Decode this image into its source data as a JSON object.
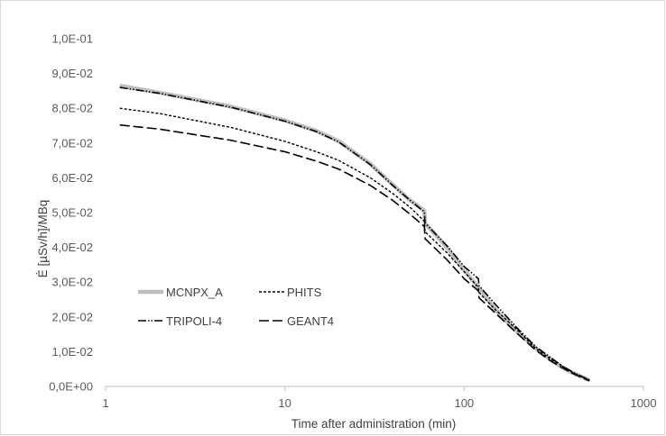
{
  "chart_data": {
    "type": "line",
    "title": "",
    "xlabel": "Time after administration (min)",
    "ylabel": "Ė [µSv/h]/MBq",
    "x_scale": "log",
    "xlim": [
      1,
      1000
    ],
    "ylim": [
      0,
      0.1
    ],
    "grid": false,
    "legend_position": "bottom-left",
    "x_tick_labels": [
      "1",
      "10",
      "100",
      "1000"
    ],
    "y_tick_labels": [
      "0,0E+00",
      "1,0E-02",
      "2,0E-02",
      "3,0E-02",
      "4,0E-02",
      "5,0E-02",
      "6,0E-02",
      "7,0E-02",
      "8,0E-02",
      "9,0E-02",
      "1,0E-01"
    ],
    "series": [
      {
        "name": "MCNPX_A",
        "color": "#bfbfbf",
        "style": "solid-thick",
        "points": [
          [
            1.2,
            0.0865
          ],
          [
            2,
            0.0845
          ],
          [
            5,
            0.0805
          ],
          [
            10,
            0.0765
          ],
          [
            15,
            0.0735
          ],
          [
            20,
            0.0705
          ],
          [
            30,
            0.064
          ],
          [
            40,
            0.058
          ],
          [
            50,
            0.0535
          ],
          [
            60,
            0.0505
          ],
          [
            60.5,
            0.047
          ],
          [
            80,
            0.04
          ],
          [
            100,
            0.0335
          ],
          [
            120,
            0.0285
          ],
          [
            150,
            0.022
          ],
          [
            200,
            0.0155
          ],
          [
            250,
            0.011
          ],
          [
            300,
            0.008
          ],
          [
            350,
            0.0055
          ],
          [
            400,
            0.004
          ],
          [
            500,
            0.0018
          ]
        ]
      },
      {
        "name": "PHITS",
        "color": "#000000",
        "style": "short-dash",
        "points": [
          [
            1.2,
            0.08
          ],
          [
            2,
            0.0785
          ],
          [
            5,
            0.0745
          ],
          [
            10,
            0.0705
          ],
          [
            15,
            0.0675
          ],
          [
            20,
            0.065
          ],
          [
            30,
            0.06
          ],
          [
            40,
            0.0555
          ],
          [
            50,
            0.0515
          ],
          [
            60,
            0.0475
          ],
          [
            60.5,
            0.0445
          ],
          [
            80,
            0.0385
          ],
          [
            100,
            0.033
          ],
          [
            120,
            0.0285
          ],
          [
            121,
            0.027
          ],
          [
            150,
            0.022
          ],
          [
            200,
            0.016
          ],
          [
            250,
            0.011
          ],
          [
            300,
            0.008
          ],
          [
            350,
            0.006
          ],
          [
            400,
            0.004
          ],
          [
            500,
            0.0018
          ]
        ]
      },
      {
        "name": "TRIPOLI-4",
        "color": "#000000",
        "style": "dash-dot-dot",
        "points": [
          [
            1.2,
            0.086
          ],
          [
            2,
            0.0843
          ],
          [
            5,
            0.0803
          ],
          [
            10,
            0.0763
          ],
          [
            15,
            0.0733
          ],
          [
            20,
            0.0703
          ],
          [
            30,
            0.0638
          ],
          [
            40,
            0.0578
          ],
          [
            50,
            0.0535
          ],
          [
            60,
            0.0502
          ],
          [
            60.5,
            0.047
          ],
          [
            80,
            0.0405
          ],
          [
            100,
            0.0345
          ],
          [
            120,
            0.031
          ],
          [
            121,
            0.029
          ],
          [
            150,
            0.0235
          ],
          [
            200,
            0.0165
          ],
          [
            250,
            0.0115
          ],
          [
            300,
            0.0085
          ],
          [
            350,
            0.006
          ],
          [
            400,
            0.0042
          ],
          [
            500,
            0.0018
          ]
        ]
      },
      {
        "name": "GEANT4",
        "color": "#000000",
        "style": "long-dash",
        "points": [
          [
            1.2,
            0.0752
          ],
          [
            2,
            0.074
          ],
          [
            5,
            0.0708
          ],
          [
            10,
            0.0675
          ],
          [
            15,
            0.0648
          ],
          [
            20,
            0.0625
          ],
          [
            30,
            0.0578
          ],
          [
            40,
            0.0535
          ],
          [
            50,
            0.0495
          ],
          [
            60,
            0.046
          ],
          [
            60.5,
            0.0425
          ],
          [
            80,
            0.0365
          ],
          [
            100,
            0.031
          ],
          [
            120,
            0.0275
          ],
          [
            121,
            0.0255
          ],
          [
            150,
            0.021
          ],
          [
            200,
            0.015
          ],
          [
            250,
            0.0105
          ],
          [
            300,
            0.0075
          ],
          [
            350,
            0.0055
          ],
          [
            400,
            0.0038
          ],
          [
            500,
            0.0016
          ]
        ]
      }
    ]
  }
}
